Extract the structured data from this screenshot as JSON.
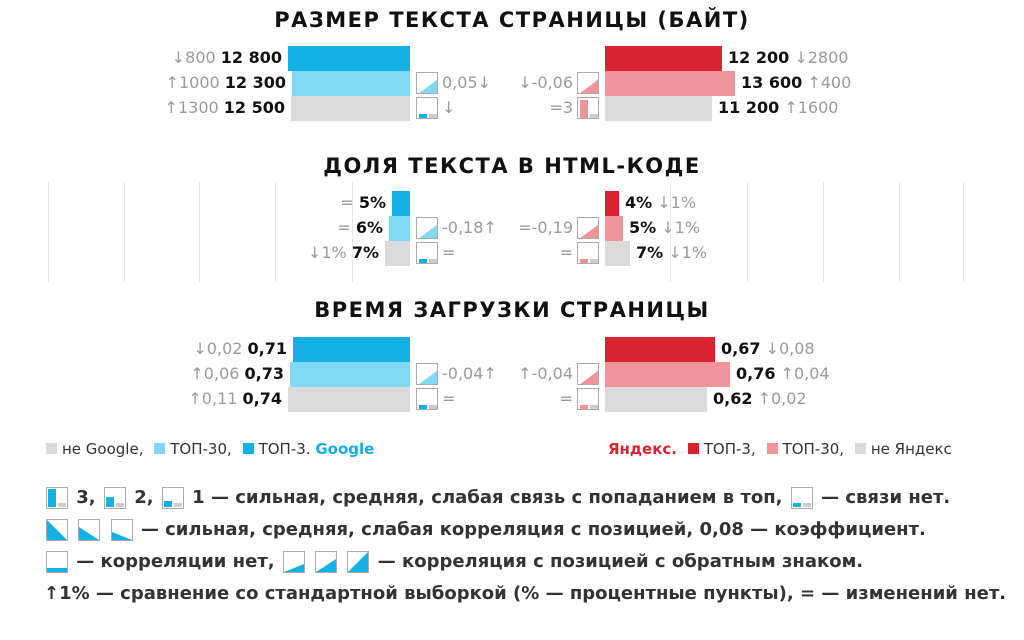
{
  "colors": {
    "google_top3": "#12b0e3",
    "google_top30": "#82d9f6",
    "google_not": "#dadada",
    "yandex_top3": "#d9232e",
    "yandex_top30": "#ee949a",
    "yandex_not": "#dadada",
    "yandex_brand": "#d9232e"
  },
  "chart_data": [
    {
      "type": "bar",
      "title": "РАЗМЕР ТЕКСТА СТРАНИЦЫ (БАЙТ)",
      "categories": [
        "ТОП-3",
        "ТОП-30",
        "не в топе"
      ],
      "google": {
        "values": [
          12800,
          12300,
          12500
        ],
        "value_labels": [
          "12 800",
          "12 300",
          "12 500"
        ],
        "comparisons": [
          "↓800",
          "↑1000",
          "↑1300"
        ],
        "correlation": "0,05↓",
        "link_strength": "нет"
      },
      "yandex": {
        "values": [
          12200,
          13600,
          11200
        ],
        "value_labels": [
          "12 200",
          "13 600",
          "11 200"
        ],
        "comparisons": [
          "↓2800",
          "↑400",
          "↑1600"
        ],
        "correlation": "↓-0,06",
        "link_strength": "=3"
      }
    },
    {
      "type": "bar",
      "title": "ДОЛЯ ТЕКСТА В HTML-КОДЕ",
      "categories": [
        "ТОП-3",
        "ТОП-30",
        "не в топе"
      ],
      "google": {
        "values": [
          5,
          6,
          7
        ],
        "value_labels": [
          "5%",
          "6%",
          "7%"
        ],
        "comparisons": [
          "=",
          "=",
          "↓1%"
        ],
        "correlation": "-0,18↑",
        "link_strength": "="
      },
      "yandex": {
        "values": [
          4,
          5,
          7
        ],
        "value_labels": [
          "4%",
          "5%",
          "7%"
        ],
        "comparisons": [
          "↓1%",
          "↓1%",
          "↓1%"
        ],
        "correlation": "=-0,19",
        "link_strength": "="
      }
    },
    {
      "type": "bar",
      "title": "ВРЕМЯ ЗАГРУЗКИ СТРАНИЦЫ",
      "categories": [
        "ТОП-3",
        "ТОП-30",
        "не в топе"
      ],
      "google": {
        "values": [
          0.71,
          0.73,
          0.74
        ],
        "value_labels": [
          "0,71",
          "0,73",
          "0,74"
        ],
        "comparisons": [
          "↓0,02",
          "↑0,06",
          "↑0,11"
        ],
        "correlation": "-0,04↑",
        "link_strength": "="
      },
      "yandex": {
        "values": [
          0.67,
          0.76,
          0.62
        ],
        "value_labels": [
          "0,67",
          "0,76",
          "0,62"
        ],
        "comparisons": [
          "↓0,08",
          "↑0,04",
          "↑0,02"
        ],
        "correlation": "↑-0,04",
        "link_strength": "="
      }
    }
  ],
  "legend": {
    "google": {
      "not_label": "не Google,",
      "top30_label": "ТОП-30,",
      "top3_label": "ТОП-3.",
      "brand": "Google"
    },
    "yandex": {
      "brand": "Яндекс.",
      "top3_label": "ТОП-3,",
      "top30_label": "ТОП-30,",
      "not_label": "не Яндекс"
    }
  },
  "footnotes": {
    "line1": {
      "n3": "3,",
      "n2": "2,",
      "n1": "1",
      "text": "— сильная, средняя, слабая связь с попаданием в топ,",
      "tail": "— связи нет."
    },
    "line2": {
      "text": "— сильная, средняя, слабая корреляция с позицией, 0,08 — коэффициент."
    },
    "line3": {
      "text1": "— корреляции нет,",
      "text2": "— корреляция с позицией с обратным знаком."
    },
    "line4": {
      "text": "↑1% — сравнение со стандартной выборкой (% — процентные пункты), = — изменений нет."
    }
  }
}
